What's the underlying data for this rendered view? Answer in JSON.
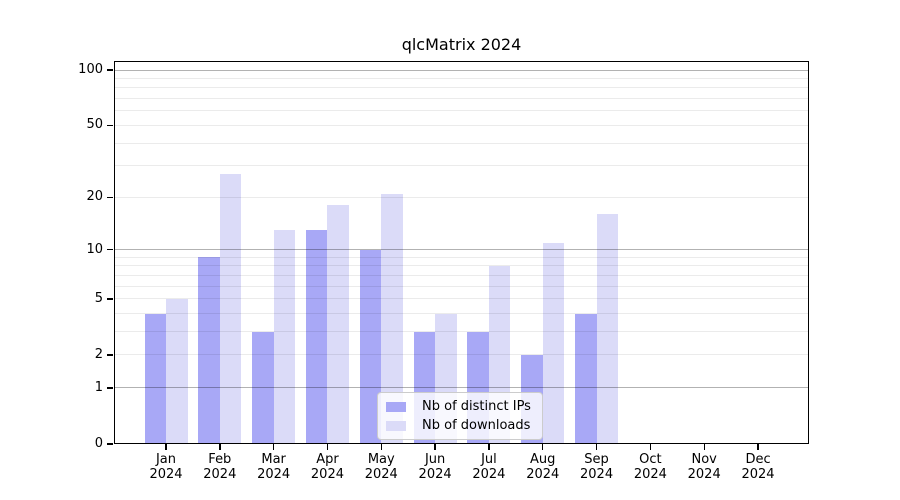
{
  "title": "qlcMatrix 2024",
  "chart_data": {
    "type": "bar",
    "title": "qlcMatrix 2024",
    "categories": [
      "Jan 2024",
      "Feb 2024",
      "Mar 2024",
      "Apr 2024",
      "May 2024",
      "Jun 2024",
      "Jul 2024",
      "Aug 2024",
      "Sep 2024",
      "Oct 2024",
      "Nov 2024",
      "Dec 2024"
    ],
    "series": [
      {
        "name": "Nb of distinct IPs",
        "color": "#a8a8f6",
        "values": [
          4,
          9,
          3,
          13,
          10,
          3,
          3,
          2,
          4,
          0,
          0,
          0
        ]
      },
      {
        "name": "Nb of downloads",
        "color": "#dbdbf8",
        "values": [
          5,
          27,
          13,
          18,
          21,
          4,
          8,
          11,
          16,
          0,
          0,
          0
        ]
      }
    ],
    "xlabel": "",
    "ylabel": "",
    "yscale": "log1p",
    "ylim": [
      0,
      112
    ],
    "y_tick_values": [
      0,
      1,
      2,
      5,
      10,
      20,
      50,
      100
    ],
    "y_tick_labels": [
      "0",
      "1",
      "2",
      "5",
      "10",
      "20",
      "50",
      "100"
    ],
    "y_major_gridlines": [
      1,
      10,
      100
    ],
    "y_minor_gridlines": [
      2,
      3,
      4,
      5,
      6,
      7,
      8,
      9,
      20,
      30,
      40,
      50,
      60,
      70,
      80,
      90
    ],
    "grid": true,
    "legend_position": "lower center",
    "colors": {
      "bar_distinct_ips": "#a8a8f6",
      "bar_downloads": "#dbdbf8",
      "axis": "#000000",
      "major_grid": "#b0b0b0",
      "minor_grid": "#ebebeb"
    }
  }
}
